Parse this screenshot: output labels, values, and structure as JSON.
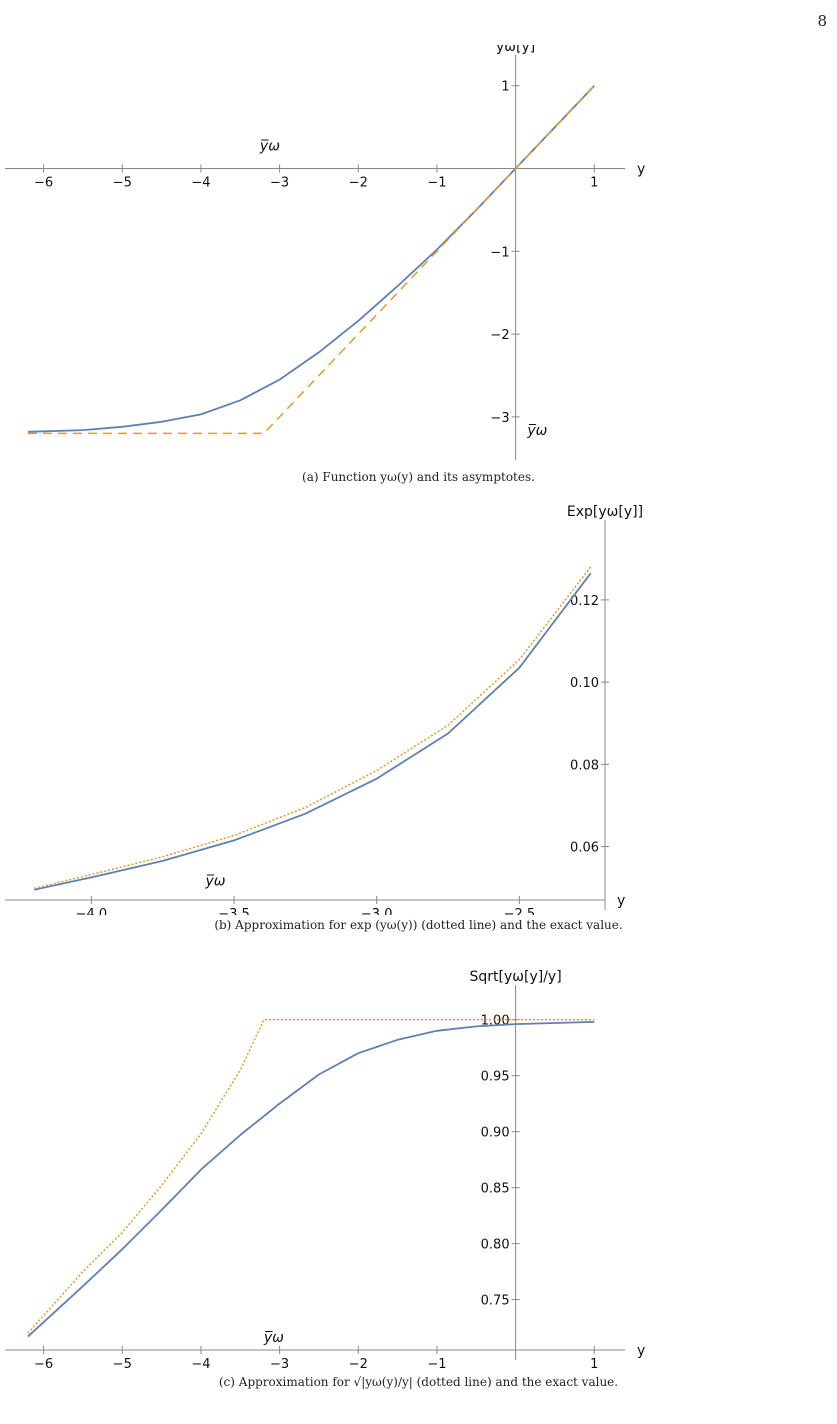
{
  "page": {
    "number": "8"
  },
  "colors": {
    "exact": "#5e81b5",
    "approx": "#e19c24",
    "axis": "#888888"
  },
  "chart_data": [
    {
      "type": "line",
      "xlabel": "y",
      "ylabel": "yω[y]",
      "xlim": [
        -6.3,
        1.2
      ],
      "ylim": [
        -3.4,
        1.25
      ],
      "xticks": [
        -6,
        -5,
        -4,
        -3,
        -2,
        -1,
        1
      ],
      "yticks": [
        -3,
        -2,
        -1,
        1
      ],
      "xtick_labels": [
        "−6",
        "−5",
        "−4",
        "−3",
        "−2",
        "−1",
        "1"
      ],
      "ytick_labels": [
        "−3",
        "−2",
        "−1",
        "1"
      ],
      "annotations": [
        {
          "text": "y̅ω",
          "x": -3.25,
          "y": 0.22
        },
        {
          "text": "y̅ω",
          "x": 0.15,
          "y": -3.22
        }
      ],
      "series": [
        {
          "style": "solid",
          "x": [
            -6.2,
            -5.5,
            -5.0,
            -4.5,
            -4.0,
            -3.5,
            -3.0,
            -2.5,
            -2.0,
            -1.5,
            -1.0,
            -0.5,
            0.0,
            0.5,
            1.0
          ],
          "y": [
            -3.18,
            -3.16,
            -3.12,
            -3.06,
            -2.97,
            -2.8,
            -2.55,
            -2.22,
            -1.84,
            -1.42,
            -0.98,
            -0.5,
            0.0,
            0.5,
            1.0
          ]
        },
        {
          "style": "dashed",
          "x": [
            -6.2,
            -3.2,
            1.0
          ],
          "y": [
            -3.2,
            -3.2,
            1.0
          ]
        }
      ],
      "caption": "(a) Function yω(y) and its asymptotes."
    },
    {
      "type": "line",
      "xlabel": "y",
      "ylabel": "Exp[yω[y]]",
      "xlim": [
        -4.25,
        -2.2
      ],
      "ylim": [
        0.047,
        0.137
      ],
      "xticks": [
        -4.0,
        -3.5,
        -3.0,
        -2.5
      ],
      "yticks": [
        0.06,
        0.08,
        0.1,
        0.12
      ],
      "xtick_labels": [
        "−4.0",
        "−3.5",
        "−3.0",
        "−2.5"
      ],
      "ytick_labels": [
        "0.06",
        "0.08",
        "0.10",
        "0.12"
      ],
      "annotations": [
        {
          "text": "y̅ω",
          "x": -3.6,
          "y": 0.0505
        }
      ],
      "series": [
        {
          "style": "solid",
          "x": [
            -4.2,
            -4.0,
            -3.75,
            -3.5,
            -3.25,
            -3.0,
            -2.75,
            -2.5,
            -2.25
          ],
          "y": [
            0.0495,
            0.0525,
            0.0565,
            0.0615,
            0.068,
            0.0765,
            0.0875,
            0.1035,
            0.1265
          ]
        },
        {
          "style": "dotted",
          "x": [
            -4.2,
            -4.0,
            -3.75,
            -3.5,
            -3.25,
            -3.0,
            -2.75,
            -2.5,
            -2.25
          ],
          "y": [
            0.0498,
            0.0532,
            0.0575,
            0.0627,
            0.0695,
            0.0785,
            0.0895,
            0.1055,
            0.128
          ]
        }
      ],
      "caption": "(b) Approximation for exp (yω(y)) (dotted line) and the exact value."
    },
    {
      "type": "line",
      "xlabel": "y",
      "ylabel": "Sqrt[yω[y]/y]",
      "xlim": [
        -6.3,
        1.2
      ],
      "ylim": [
        0.705,
        1.022
      ],
      "xticks": [
        -6,
        -5,
        -4,
        -3,
        -2,
        -1,
        1
      ],
      "yticks": [
        0.75,
        0.8,
        0.85,
        0.9,
        0.95,
        1.0
      ],
      "xtick_labels": [
        "−6",
        "−5",
        "−4",
        "−3",
        "−2",
        "−1",
        "1"
      ],
      "ytick_labels": [
        "0.75",
        "0.80",
        "0.85",
        "0.90",
        "0.95",
        "1.00"
      ],
      "annotations": [
        {
          "text": "y̅ω",
          "x": -3.2,
          "y": 0.712
        }
      ],
      "series": [
        {
          "style": "solid",
          "x": [
            -6.2,
            -5.5,
            -5.0,
            -4.5,
            -4.0,
            -3.5,
            -3.0,
            -2.5,
            -2.0,
            -1.5,
            -1.0,
            -0.5,
            0.0,
            0.5,
            1.0
          ],
          "y": [
            0.717,
            0.762,
            0.795,
            0.83,
            0.866,
            0.897,
            0.925,
            0.951,
            0.97,
            0.982,
            0.99,
            0.994,
            0.996,
            0.997,
            0.998
          ]
        },
        {
          "style": "dotted",
          "x": [
            -6.2,
            -5.5,
            -5.0,
            -4.5,
            -4.0,
            -3.5,
            -3.2,
            1.0
          ],
          "y": [
            0.72,
            0.775,
            0.81,
            0.852,
            0.898,
            0.955,
            1.0,
            1.0
          ]
        }
      ],
      "caption": "(c) Approximation for √|yω(y)/y| (dotted line) and the exact value."
    }
  ]
}
